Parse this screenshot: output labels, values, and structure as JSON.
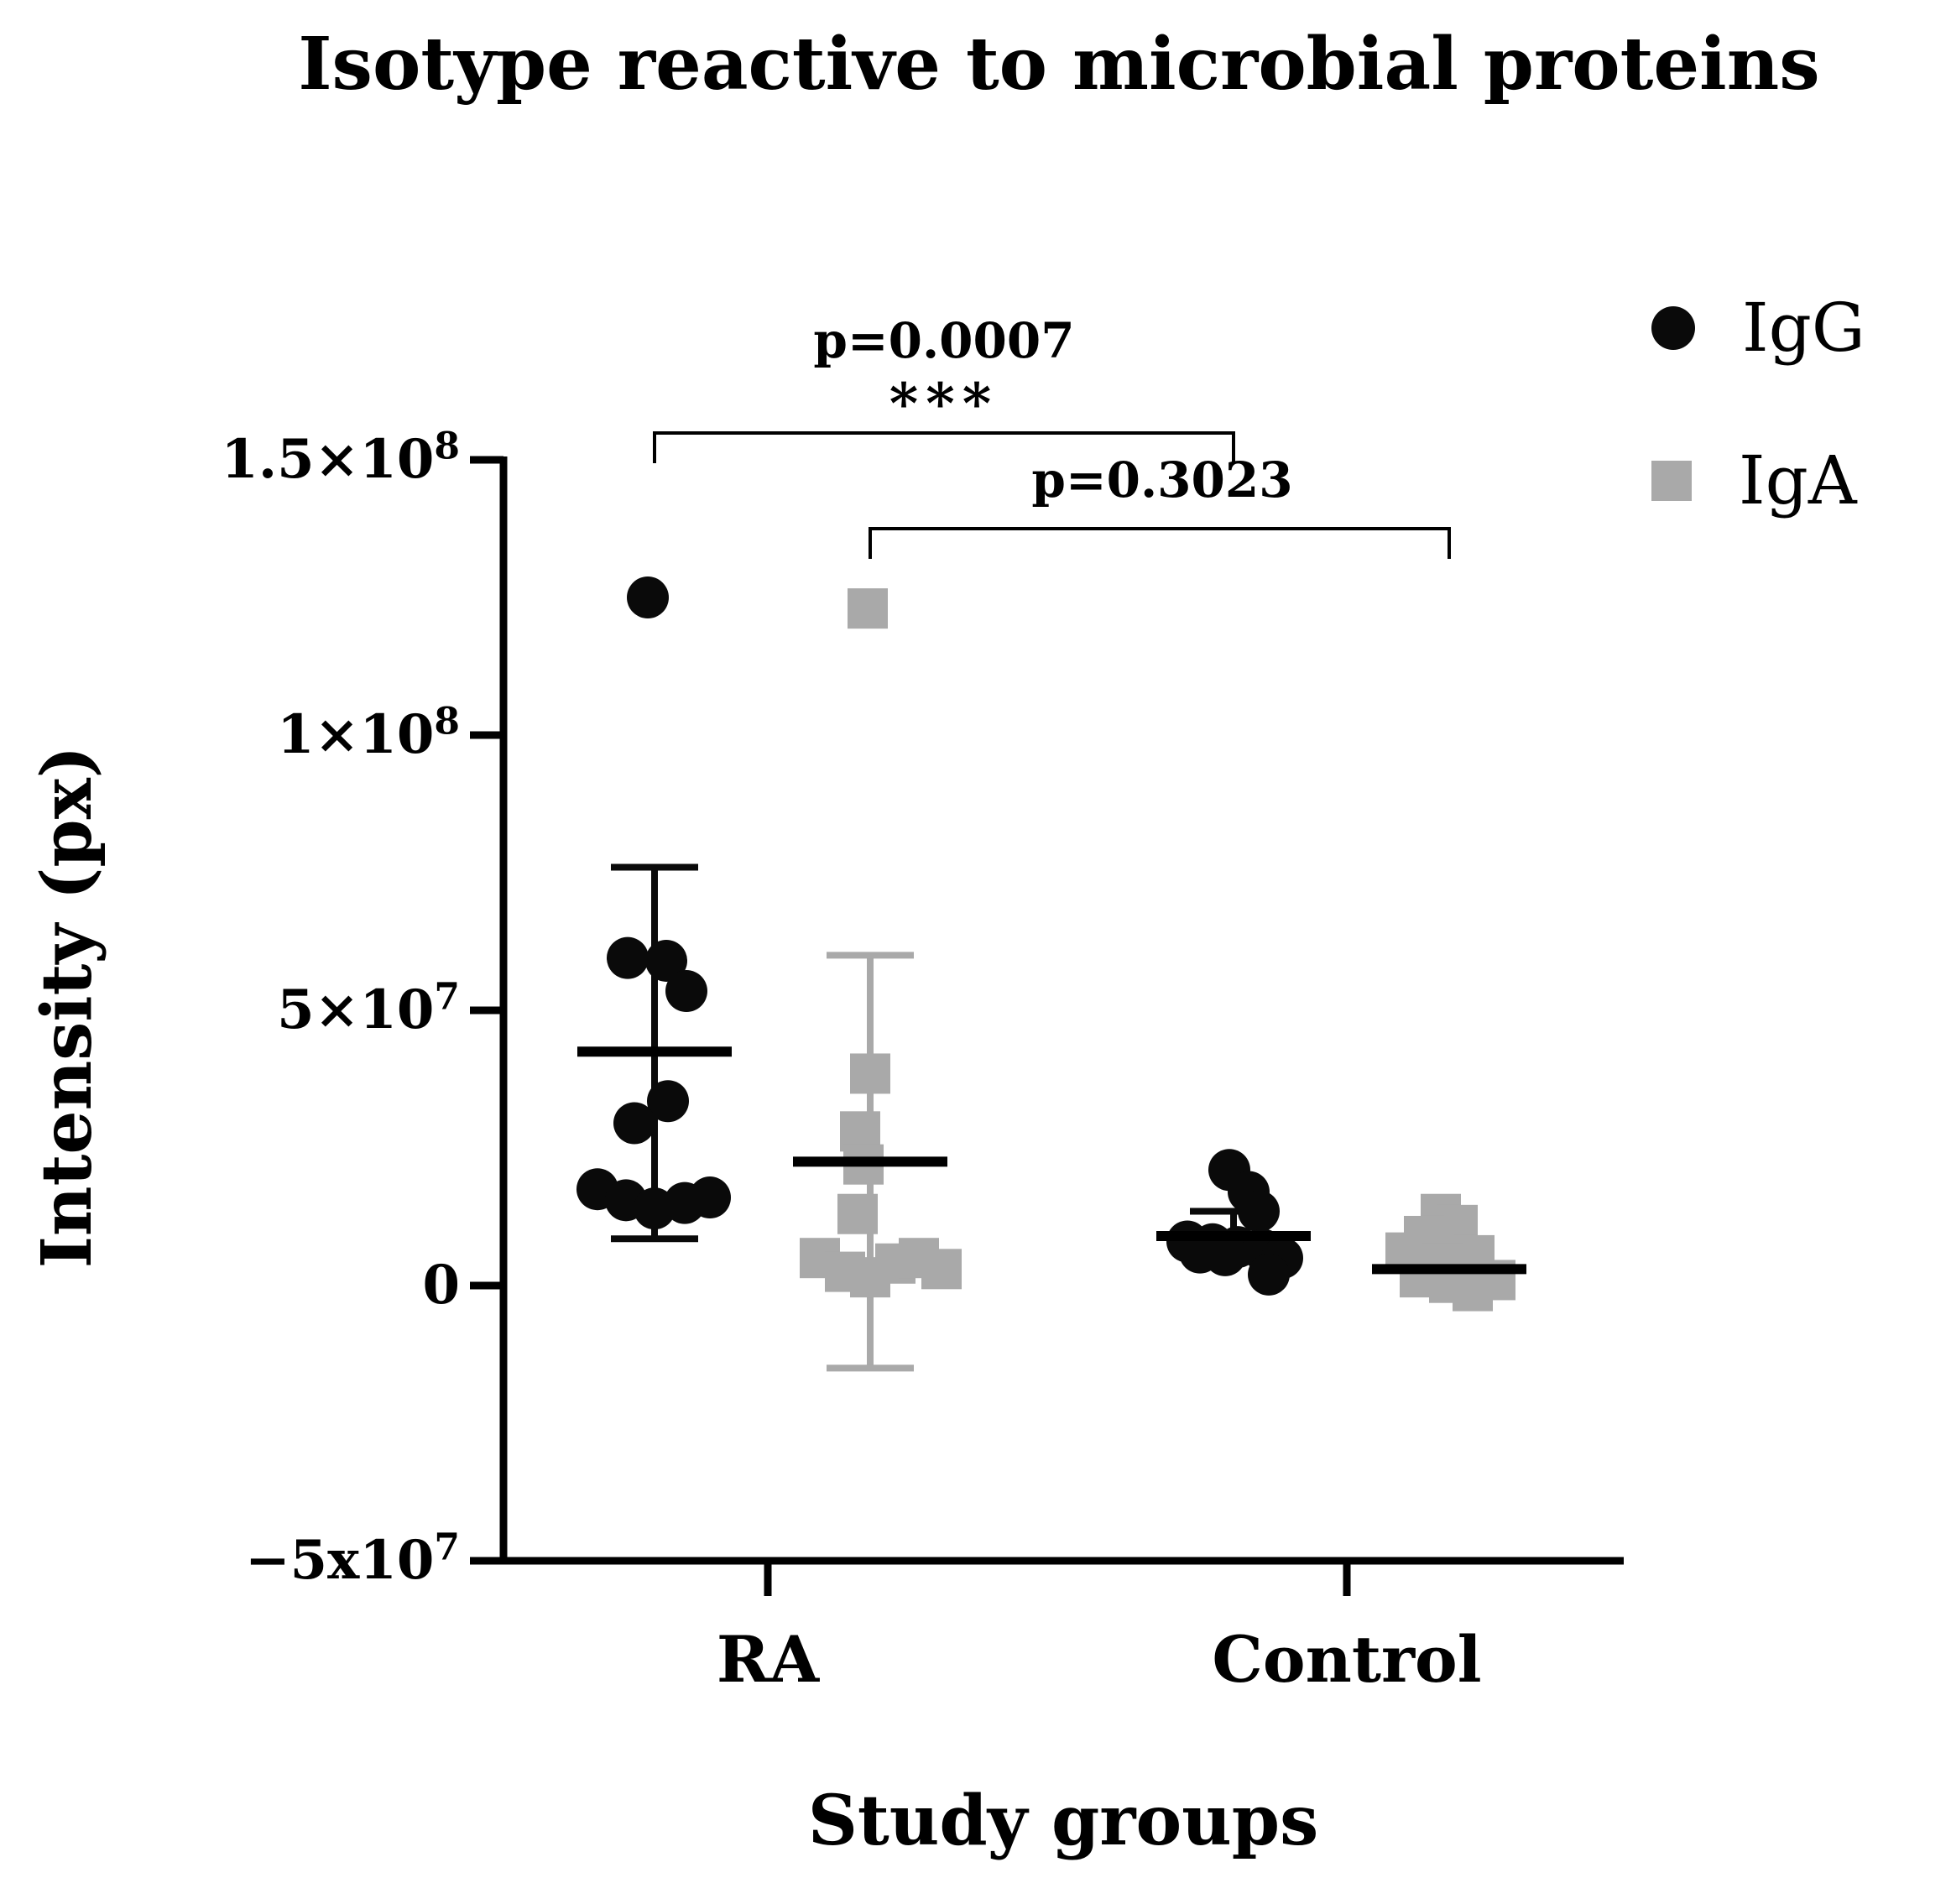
{
  "title": "Isotype reactive to microbial proteins",
  "chart_data": {
    "type": "scatter",
    "title": "Isotype reactive to microbial proteins",
    "xlabel": "Study groups",
    "ylabel": "Intensity (px)",
    "ylim": [
      -50000000.0,
      150000000.0
    ],
    "grid": false,
    "legend_position": "top-right",
    "groups": [
      "RA",
      "Control"
    ],
    "yticks": [
      {
        "base": "1.5×10",
        "sup": "8",
        "value": 150000000.0
      },
      {
        "base": "1×10",
        "sup": "8",
        "value": 100000000.0
      },
      {
        "base": "5×10",
        "sup": "7",
        "value": 50000000.0
      },
      {
        "base": "0",
        "sup": "",
        "value": 0
      },
      {
        "base": "−5x10",
        "sup": "7",
        "value": -50000000.0
      }
    ],
    "series": [
      {
        "name": "IgG",
        "marker": "circle",
        "color": "#0a0a0a",
        "mean_color": "#000000",
        "points": {
          "RA": [
            [
              125000000.0,
              -8
            ],
            [
              59500000.0,
              -32
            ],
            [
              59000000.0,
              14
            ],
            [
              53500000.0,
              38
            ],
            [
              33500000.0,
              16
            ],
            [
              29500000.0,
              -24
            ],
            [
              17500000.0,
              -68
            ],
            [
              15500000.0,
              -34
            ],
            [
              14000000.0,
              0
            ],
            [
              15000000.0,
              36
            ],
            [
              16000000.0,
              66
            ]
          ],
          "Control": [
            [
              21000000.0,
              -5
            ],
            [
              17000000.0,
              18
            ],
            [
              13500000.0,
              30
            ],
            [
              8000000.0,
              -55
            ],
            [
              7500000.0,
              -25
            ],
            [
              7000000.0,
              5
            ],
            [
              6500000.0,
              35
            ],
            [
              6000000.0,
              -40
            ],
            [
              5500000.0,
              -10
            ],
            [
              5000000.0,
              58
            ],
            [
              2000000.0,
              42
            ]
          ]
        },
        "stats": {
          "RA": {
            "mean": 42500000.0,
            "err_low": 8500000.0,
            "err_high": 76000000.0
          },
          "Control": {
            "mean": 9000000.0,
            "err_low": 4500000.0,
            "err_high": 13500000.0
          }
        }
      },
      {
        "name": "IgA",
        "marker": "square",
        "color": "#a9a9a9",
        "mean_color": "#000000",
        "points": {
          "RA": [
            [
              123000000.0,
              -3
            ],
            [
              38500000.0,
              0
            ],
            [
              28000000.0,
              -12
            ],
            [
              22000000.0,
              -8
            ],
            [
              13000000.0,
              -15
            ],
            [
              5000000.0,
              -60
            ],
            [
              2500000.0,
              -30
            ],
            [
              1500000.0,
              0
            ],
            [
              4000000.0,
              30
            ],
            [
              5000000.0,
              58
            ],
            [
              3000000.0,
              85
            ]
          ],
          "Control": [
            [
              13000000.0,
              -10
            ],
            [
              11000000.0,
              10
            ],
            [
              9000000.0,
              -30
            ],
            [
              6000000.0,
              -52
            ],
            [
              5500000.0,
              30
            ],
            [
              4000000.0,
              -8
            ],
            [
              3000000.0,
              18
            ],
            [
              1500000.0,
              -35
            ],
            [
              1000000.0,
              55
            ],
            [
              500000.0,
              0
            ],
            [
              -1000000.0,
              28
            ]
          ]
        },
        "stats": {
          "RA": {
            "mean": 22500000.0,
            "err_low": -15000000.0,
            "err_high": 60000000.0
          },
          "Control": {
            "mean": 3000000.0,
            "err_low": -1000000.0,
            "err_high": 7000000.0
          }
        }
      }
    ],
    "annotations": [
      {
        "label": "p=0.0007",
        "stars": "***",
        "series": "IgG",
        "from_group": "RA",
        "to_group": "Control"
      },
      {
        "label": "p=0.3023",
        "stars": "",
        "series": "IgA",
        "from_group": "RA",
        "to_group": "Control"
      }
    ]
  }
}
